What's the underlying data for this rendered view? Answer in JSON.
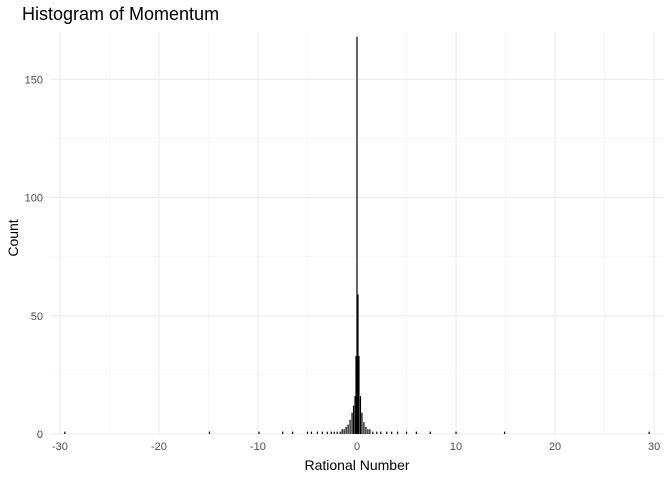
{
  "chart_data": {
    "type": "bar",
    "title": "Histogram of Momentum",
    "xlabel": "Rational Number",
    "ylabel": "Count",
    "xlim": [
      -31,
      31
    ],
    "ylim": [
      0,
      170
    ],
    "x_ticks": [
      -30,
      -20,
      -10,
      0,
      10,
      20,
      30
    ],
    "x_tick_labels": [
      "-30",
      "-20",
      "-10",
      "0",
      "10",
      "20",
      "30"
    ],
    "y_ticks": [
      0,
      50,
      100,
      150
    ],
    "y_tick_labels": [
      "0",
      "50",
      "100",
      "150"
    ],
    "grid": true,
    "bar_color": "#000000",
    "bin_width": 0.12,
    "bins": [
      {
        "x": -29.5,
        "count": 1
      },
      {
        "x": -14.9,
        "count": 1
      },
      {
        "x": -9.9,
        "count": 1
      },
      {
        "x": -7.5,
        "count": 1
      },
      {
        "x": -6.5,
        "count": 1
      },
      {
        "x": -5.0,
        "count": 1
      },
      {
        "x": -4.6,
        "count": 1
      },
      {
        "x": -4.0,
        "count": 1
      },
      {
        "x": -3.5,
        "count": 1
      },
      {
        "x": -3.0,
        "count": 1
      },
      {
        "x": -2.6,
        "count": 1
      },
      {
        "x": -2.3,
        "count": 1
      },
      {
        "x": -2.0,
        "count": 1
      },
      {
        "x": -1.7,
        "count": 1
      },
      {
        "x": -1.5,
        "count": 2
      },
      {
        "x": -1.3,
        "count": 2
      },
      {
        "x": -1.1,
        "count": 3
      },
      {
        "x": -0.9,
        "count": 4
      },
      {
        "x": -0.7,
        "count": 6
      },
      {
        "x": -0.5,
        "count": 9
      },
      {
        "x": -0.35,
        "count": 12
      },
      {
        "x": -0.2,
        "count": 16
      },
      {
        "x": -0.1,
        "count": 33
      },
      {
        "x": 0.0,
        "count": 168
      },
      {
        "x": 0.1,
        "count": 59
      },
      {
        "x": 0.2,
        "count": 33
      },
      {
        "x": 0.35,
        "count": 16
      },
      {
        "x": 0.5,
        "count": 9
      },
      {
        "x": 0.7,
        "count": 5
      },
      {
        "x": 0.9,
        "count": 3
      },
      {
        "x": 1.1,
        "count": 2
      },
      {
        "x": 1.3,
        "count": 2
      },
      {
        "x": 1.6,
        "count": 1
      },
      {
        "x": 2.0,
        "count": 1
      },
      {
        "x": 2.4,
        "count": 1
      },
      {
        "x": 3.0,
        "count": 1
      },
      {
        "x": 3.5,
        "count": 1
      },
      {
        "x": 4.1,
        "count": 1
      },
      {
        "x": 5.0,
        "count": 1
      },
      {
        "x": 6.0,
        "count": 1
      },
      {
        "x": 7.4,
        "count": 1
      },
      {
        "x": 10.0,
        "count": 1
      },
      {
        "x": 14.9,
        "count": 1
      },
      {
        "x": 29.5,
        "count": 1
      }
    ]
  }
}
